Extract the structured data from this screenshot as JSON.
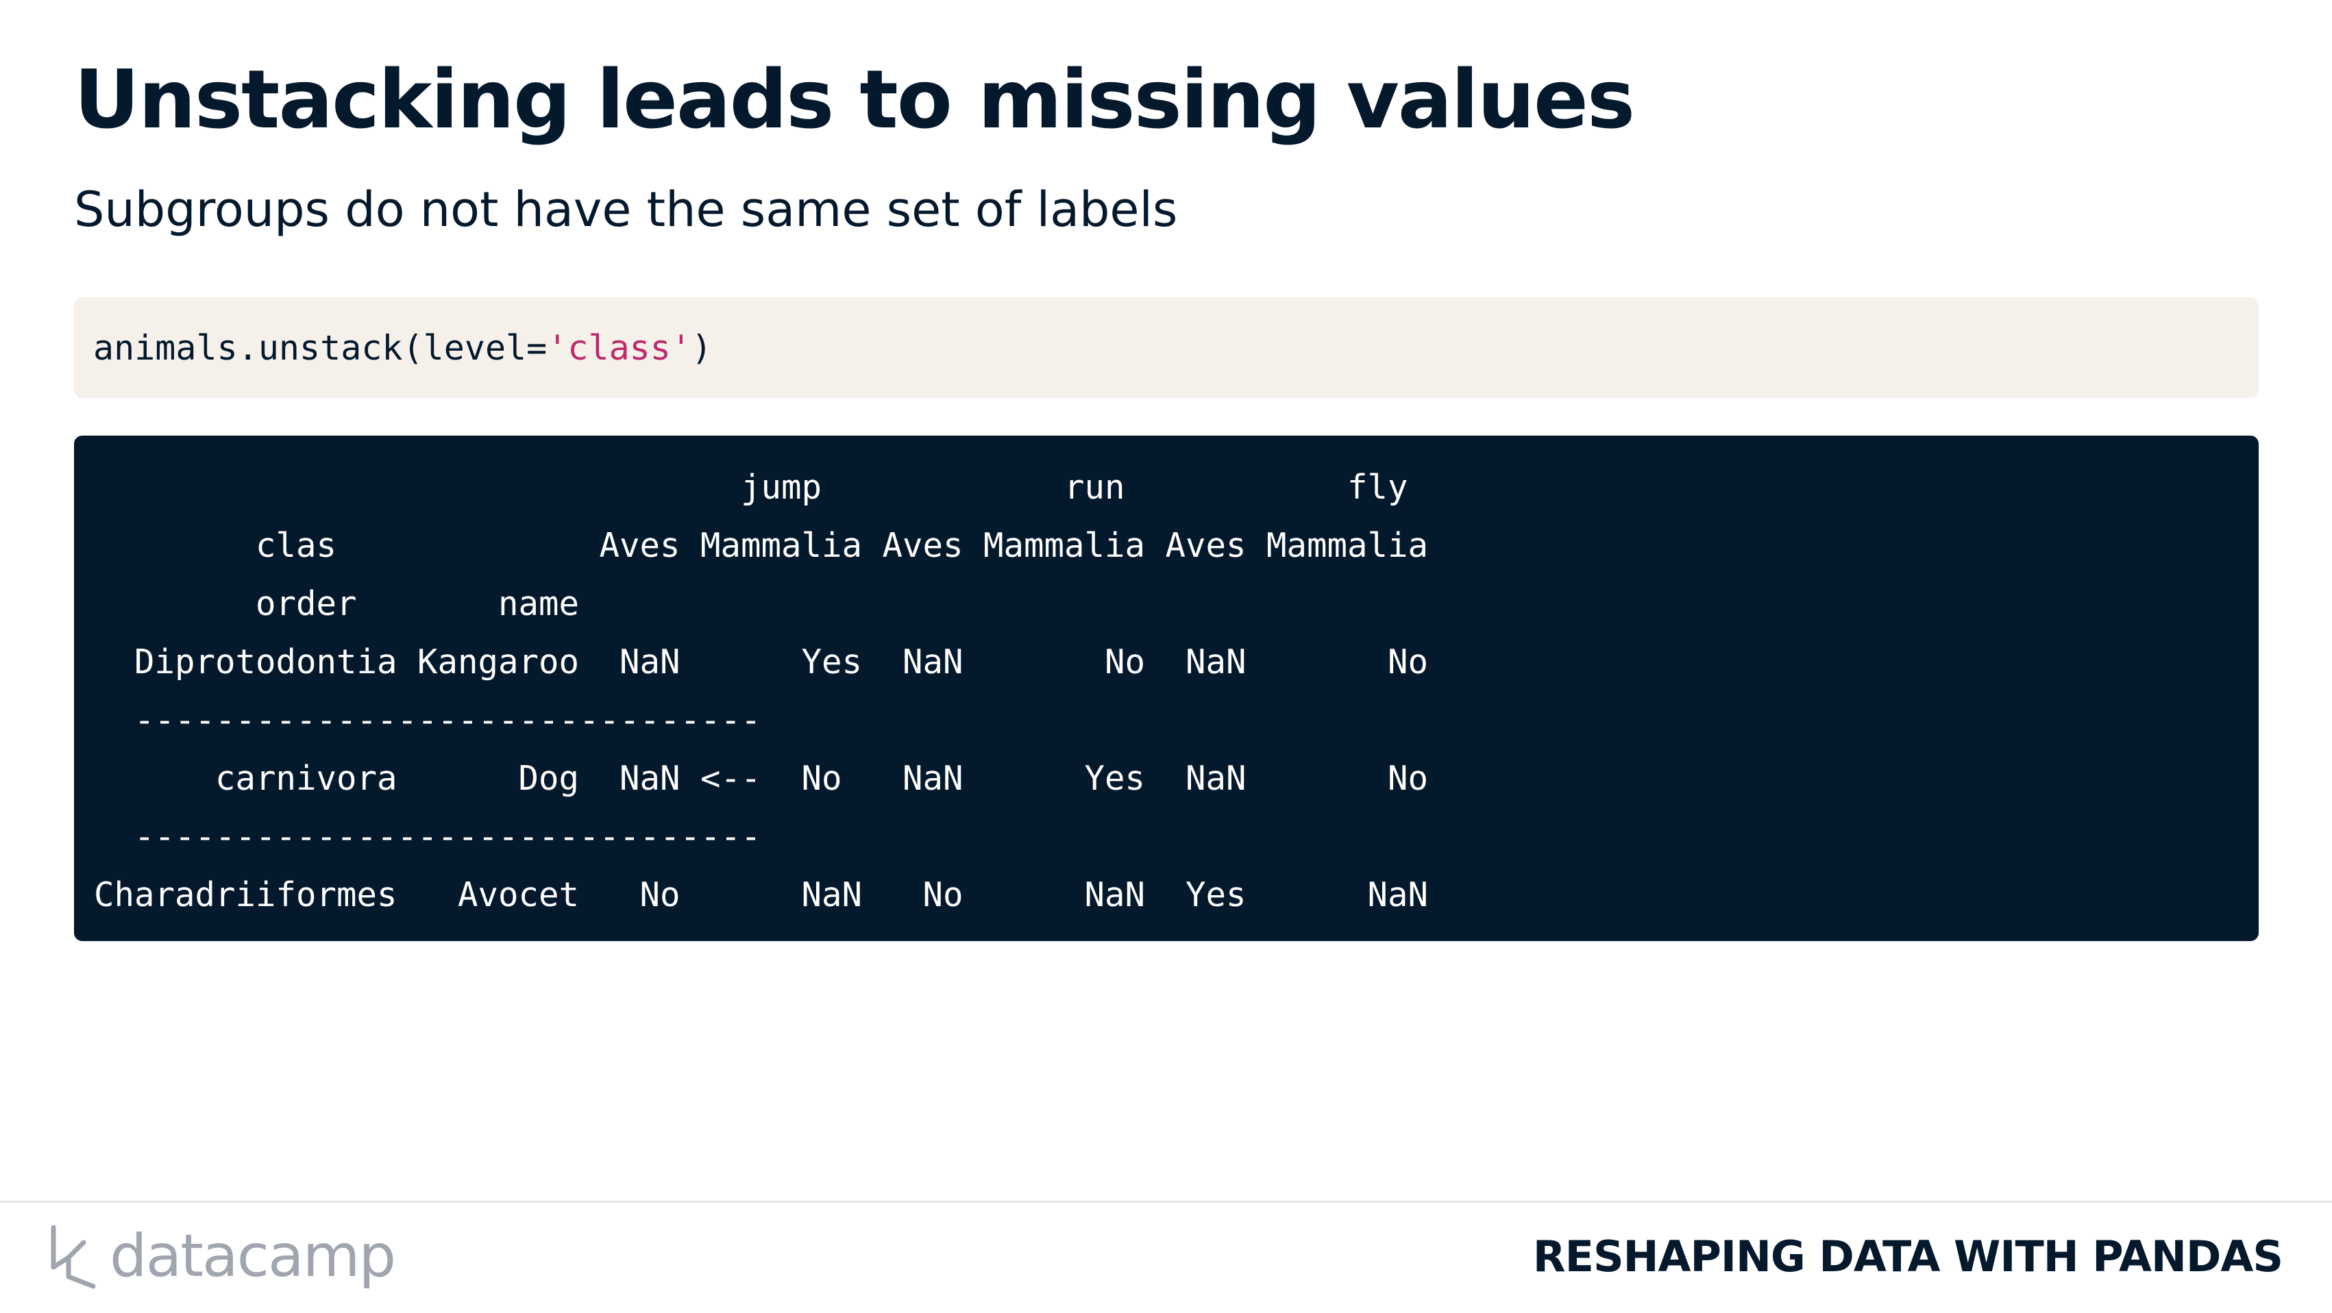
{
  "slide": {
    "title": "Unstacking leads to missing values",
    "subtitle": "Subgroups do not have the same set of labels"
  },
  "code": {
    "prefix": "animals.unstack(level=",
    "string": "'class'",
    "suffix": ")"
  },
  "output": {
    "lines": [
      "                                jump            run           fly",
      "        clas             Aves Mammalia Aves Mammalia Aves Mammalia",
      "        order       name",
      "  Diprotodontia Kangaroo  NaN      Yes  NaN       No  NaN       No",
      "  -------------------------------",
      "      carnivora      Dog  NaN <--  No   NaN      Yes  NaN       No",
      "  -------------------------------",
      "Charadriiformes   Avocet   No      NaN   No      NaN  Yes      NaN"
    ]
  },
  "footer": {
    "logo_text": "datacamp",
    "course_title": "RESHAPING DATA WITH PANDAS"
  },
  "colors": {
    "text_dark": "#05192d",
    "code_bg": "#f5f1ea",
    "code_string": "#bd2a6b",
    "output_bg": "#05192d",
    "logo_gray": "#a1a6ae"
  },
  "icons": {
    "logo": "datacamp-logo-icon"
  }
}
